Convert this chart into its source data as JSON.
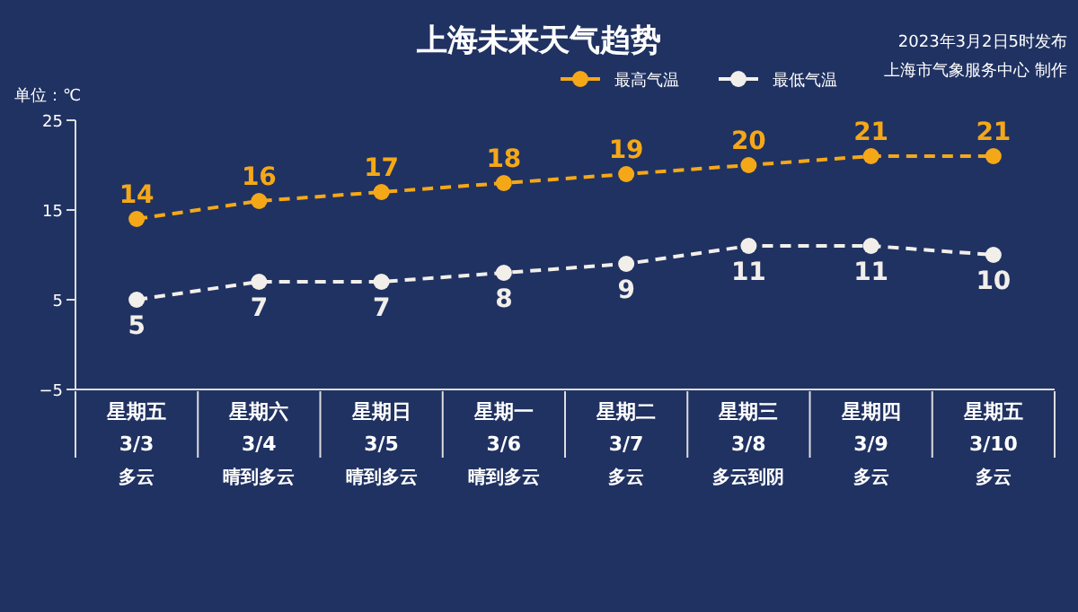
{
  "chart_data": {
    "type": "line",
    "title": "上海未来天气趋势",
    "ylabel": "单位：℃",
    "annotations": [
      "2023年3月2日5时发布",
      "上海市气象服务中心 制作"
    ],
    "categories": [
      "星期五\n3/3\n多云",
      "星期六\n3/4\n晴到多云",
      "星期日\n3/5\n晴到多云",
      "星期一\n3/6\n晴到多云",
      "星期二\n3/7\n多云",
      "星期三\n3/8\n多云到阴",
      "星期四\n3/9\n多云",
      "星期五\n3/10\n多云"
    ],
    "series": [
      {
        "name": "最高气温",
        "color": "#f5a817",
        "values": [
          14,
          16,
          17,
          18,
          19,
          20,
          21,
          21
        ]
      },
      {
        "name": "最低气温",
        "color": "#f2efea",
        "values": [
          5,
          7,
          7,
          8,
          9,
          11,
          11,
          10
        ]
      }
    ],
    "ylim": [
      -5,
      25
    ],
    "yticks": [
      25,
      15,
      5,
      -5
    ],
    "grid": false,
    "legend": "top right",
    "marker": "circle",
    "line_style": "dashed",
    "data_labels": true
  }
}
